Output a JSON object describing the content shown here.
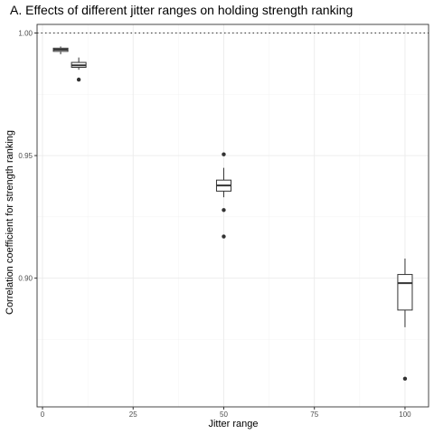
{
  "chart_data": {
    "type": "boxplot",
    "title": "A. Effects of different jitter ranges on holding strength ranking",
    "xlabel": "Jitter range",
    "ylabel": "Correlation coefficient for strength ranking",
    "xlim": [
      -1.5,
      106.5
    ],
    "ylim": [
      0.8475,
      1.0035
    ],
    "x_ticks": [
      0,
      25,
      50,
      75,
      100
    ],
    "x_tick_labels": [
      "0",
      "25",
      "50",
      "75",
      "100"
    ],
    "y_ticks": [
      0.9,
      0.95,
      1.0
    ],
    "y_tick_labels": [
      "0.90",
      "0.95",
      "1.00"
    ],
    "grid": true,
    "reference_line": {
      "y": 1.0,
      "style": "dotted"
    },
    "box_width": 4,
    "boxes": [
      {
        "x": 5,
        "lower_whisker": 0.9913,
        "q1": 0.9925,
        "median": 0.9932,
        "q3": 0.9938,
        "upper_whisker": 0.9945,
        "outliers": []
      },
      {
        "x": 10,
        "lower_whisker": 0.985,
        "q1": 0.986,
        "median": 0.9868,
        "q3": 0.988,
        "upper_whisker": 0.99,
        "outliers": [
          0.981
        ]
      },
      {
        "x": 50,
        "lower_whisker": 0.933,
        "q1": 0.9355,
        "median": 0.9378,
        "q3": 0.94,
        "upper_whisker": 0.945,
        "outliers": [
          0.9505,
          0.9278,
          0.917
        ]
      },
      {
        "x": 100,
        "lower_whisker": 0.88,
        "q1": 0.887,
        "median": 0.898,
        "q3": 0.9015,
        "upper_whisker": 0.908,
        "outliers": [
          0.859
        ]
      }
    ]
  }
}
